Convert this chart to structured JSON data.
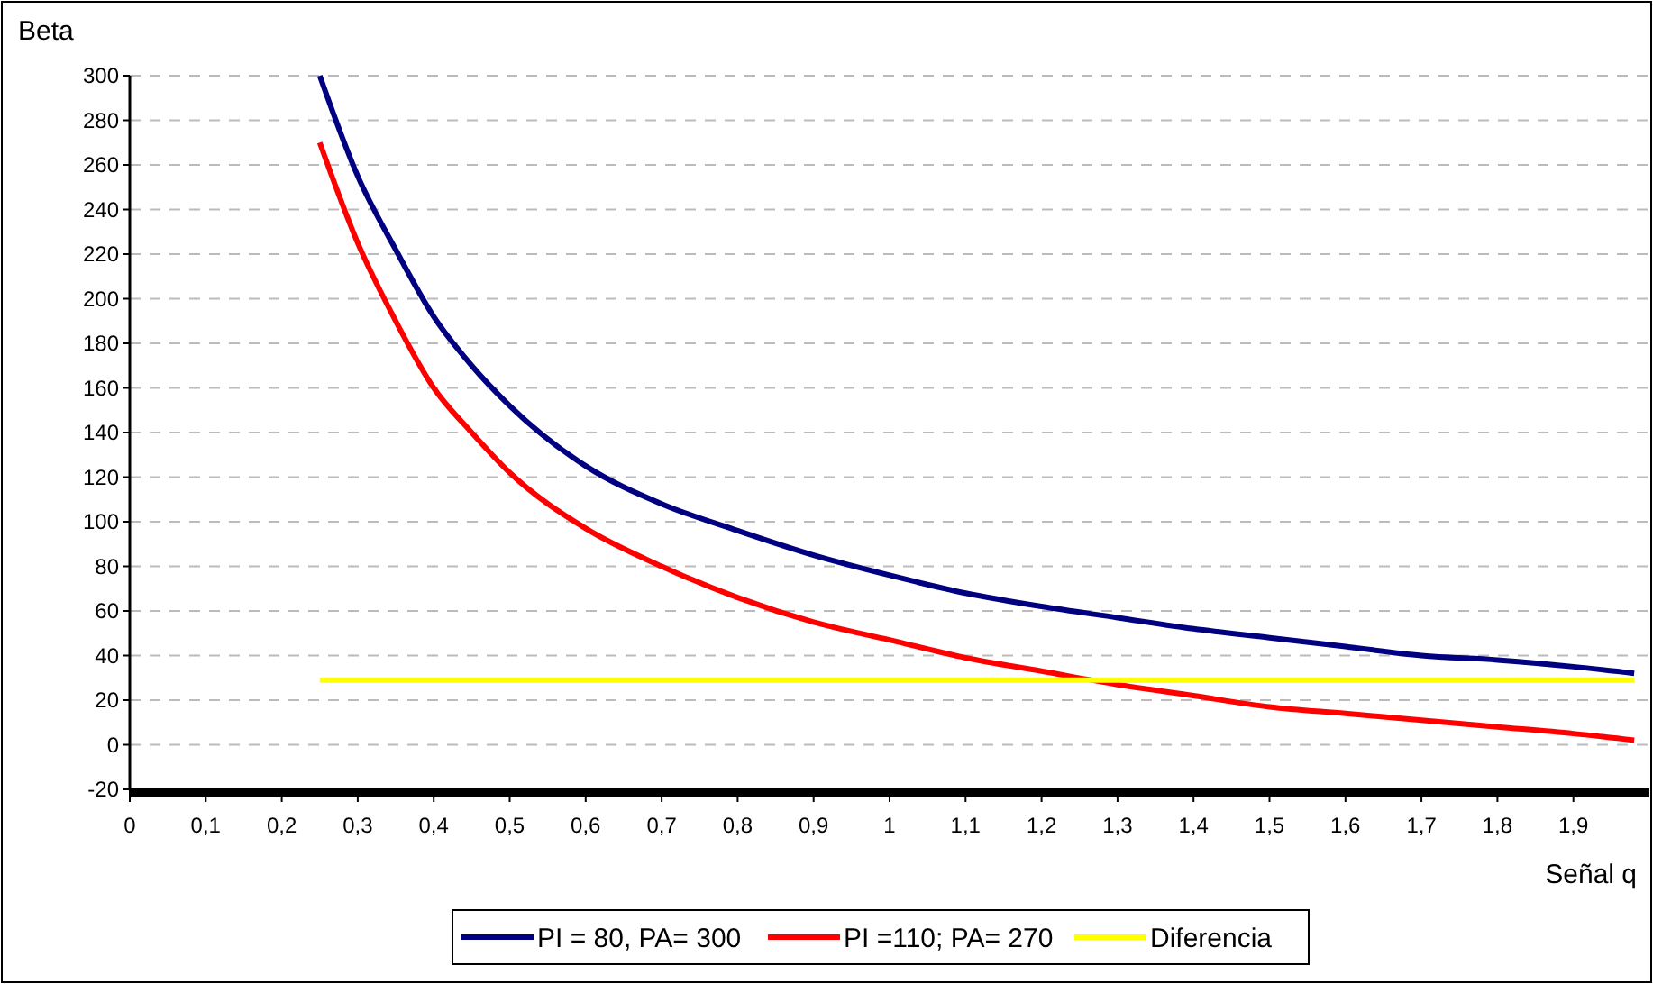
{
  "chart_data": {
    "type": "line",
    "ylabel": "Beta",
    "xlabel": "Señal q",
    "xlim": [
      0,
      2
    ],
    "ylim": [
      -20,
      300
    ],
    "xticks": [
      0,
      {
        "value": 0.1,
        "label": "0,1"
      },
      {
        "value": 0.2,
        "label": "0,2"
      },
      {
        "value": 0.3,
        "label": "0,3"
      },
      {
        "value": 0.4,
        "label": "0,4"
      },
      {
        "value": 0.5,
        "label": "0,5"
      },
      {
        "value": 0.6,
        "label": "0,6"
      },
      {
        "value": 0.7,
        "label": "0,7"
      },
      {
        "value": 0.8,
        "label": "0,8"
      },
      {
        "value": 0.9,
        "label": "0,9"
      },
      1,
      {
        "value": 1.1,
        "label": "1,1"
      },
      {
        "value": 1.2,
        "label": "1,2"
      },
      {
        "value": 1.3,
        "label": "1,3"
      },
      {
        "value": 1.4,
        "label": "1,4"
      },
      {
        "value": 1.5,
        "label": "1,5"
      },
      {
        "value": 1.6,
        "label": "1,6"
      },
      {
        "value": 1.7,
        "label": "1,7"
      },
      {
        "value": 1.8,
        "label": "1,8"
      },
      {
        "value": 1.9,
        "label": "1,9"
      }
    ],
    "yticks": [
      -20,
      0,
      20,
      40,
      60,
      80,
      100,
      120,
      140,
      160,
      180,
      200,
      220,
      240,
      260,
      280,
      300
    ],
    "grid": "y",
    "legend": "bottom",
    "marker": "none",
    "line_style": "solid",
    "series": [
      {
        "name": "PI = 80, PA= 300",
        "color": "#000080",
        "x": [
          0.25,
          0.3,
          0.35,
          0.4,
          0.45,
          0.5,
          0.6,
          0.7,
          0.8,
          0.9,
          1,
          1.1,
          1.2,
          1.3,
          1.4,
          1.5,
          1.6,
          1.7,
          1.8,
          1.9,
          1.98
        ],
        "values": [
          300,
          255,
          222,
          192,
          170,
          152,
          125,
          108,
          96,
          85,
          76,
          68,
          62,
          57,
          52,
          48,
          44,
          40,
          38,
          35,
          32
        ]
      },
      {
        "name": "PI =110; PA= 270",
        "color": "#ff0000",
        "x": [
          0.25,
          0.3,
          0.35,
          0.4,
          0.45,
          0.5,
          0.6,
          0.7,
          0.8,
          0.9,
          1,
          1.1,
          1.2,
          1.3,
          1.4,
          1.5,
          1.6,
          1.7,
          1.8,
          1.9,
          1.98
        ],
        "values": [
          270,
          225,
          190,
          160,
          140,
          122,
          97,
          80,
          66,
          55,
          47,
          39,
          33,
          27,
          22,
          17,
          14,
          11,
          8,
          5,
          2
        ]
      },
      {
        "name": "Diferencia",
        "color": "#ffff00",
        "x": [
          0.25,
          1.98
        ],
        "values": [
          29,
          29
        ]
      }
    ]
  }
}
